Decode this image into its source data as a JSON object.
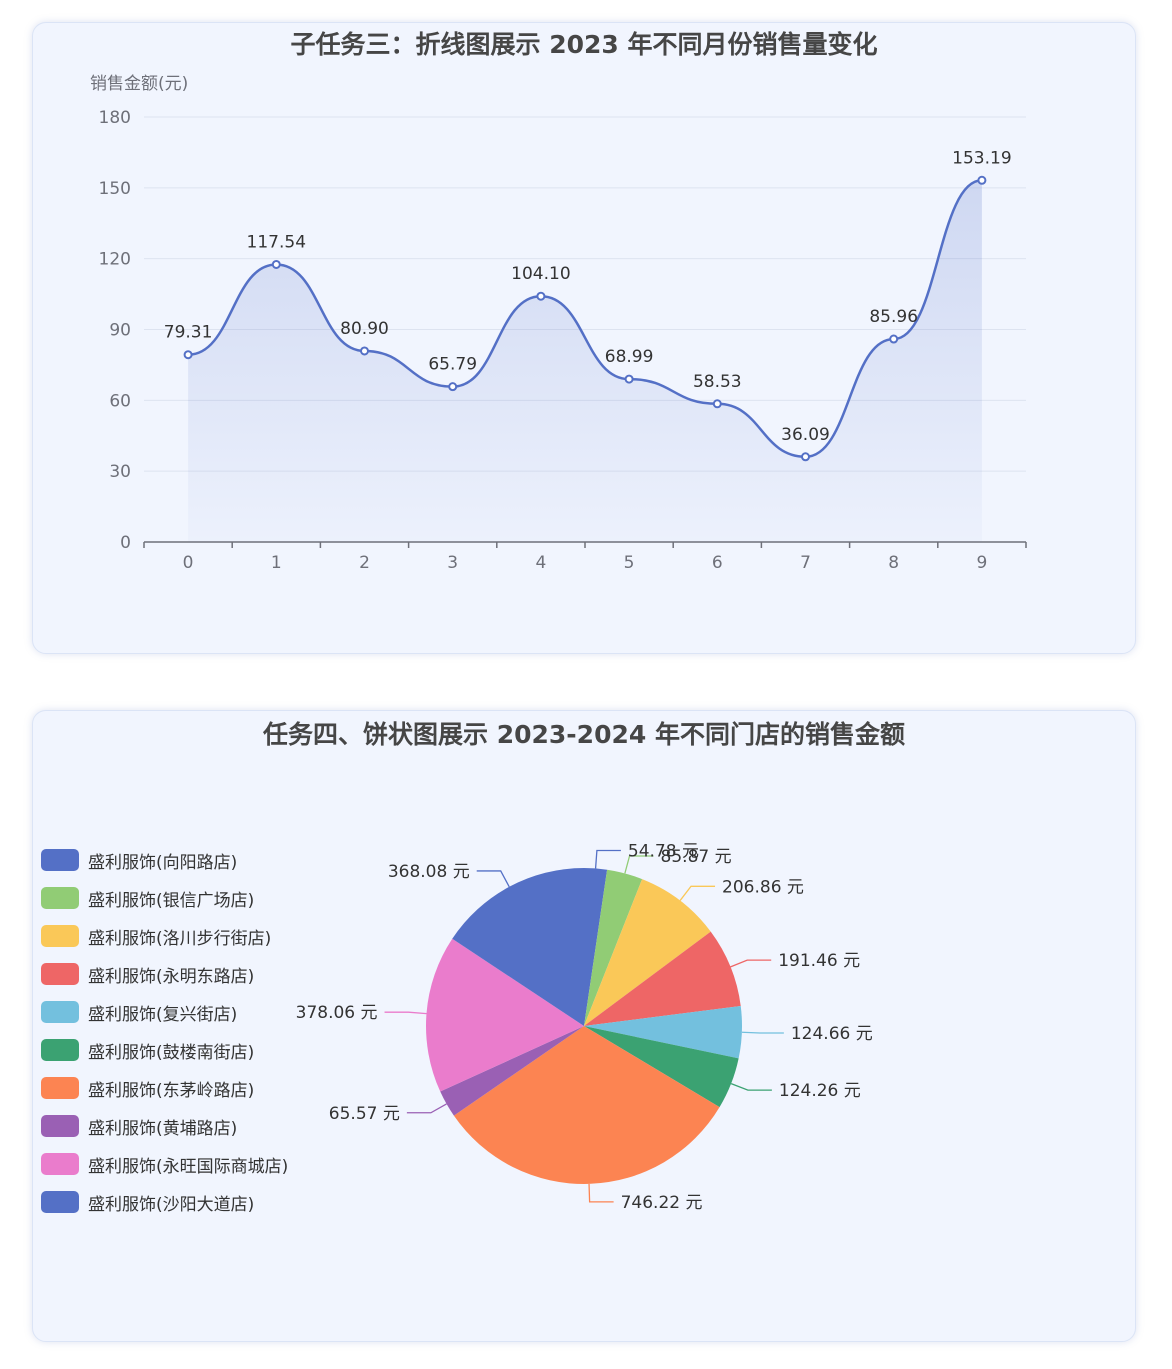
{
  "line_card": {
    "title": "子任务三：折线图展示 2023 年不同月份销售量变化"
  },
  "pie_card": {
    "title": "任务四、饼状图展示 2023-2024 年不同门店的销售金额"
  },
  "chart_data": [
    {
      "type": "line",
      "title": "子任务三：折线图展示 2023 年不同月份销售量变化",
      "ylabel": "销售金额(元)",
      "xlabel": "",
      "x": [
        0,
        1,
        2,
        3,
        4,
        5,
        6,
        7,
        8,
        9
      ],
      "values": [
        79.31,
        117.54,
        80.9,
        65.79,
        104.1,
        68.99,
        58.53,
        36.09,
        85.96,
        153.19
      ],
      "value_labels": [
        "79.31",
        "117.54",
        "80.90",
        "65.79",
        "104.10",
        "68.99",
        "58.53",
        "36.09",
        "85.96",
        "153.19"
      ],
      "ylim": [
        0,
        180
      ],
      "yticks": [
        0,
        30,
        60,
        90,
        120,
        150,
        180
      ],
      "smooth": true,
      "area_fill": true,
      "grid": true,
      "color": "#5470c6"
    },
    {
      "type": "pie",
      "title": "任务四、饼状图展示 2023-2024 年不同门店的销售金额",
      "legend_position": "left",
      "label_suffix": " 元",
      "slices": [
        {
          "name": "盛利服饰(向阳路店)",
          "value": 54.78,
          "label": "54.78 元",
          "color": "#5470c6"
        },
        {
          "name": "盛利服饰(银信广场店)",
          "value": 85.87,
          "label": "85.87 元",
          "color": "#91cc75"
        },
        {
          "name": "盛利服饰(洛川步行街店)",
          "value": 206.86,
          "label": "206.86 元",
          "color": "#fac858"
        },
        {
          "name": "盛利服饰(永明东路店)",
          "value": 191.46,
          "label": "191.46 元",
          "color": "#ee6666"
        },
        {
          "name": "盛利服饰(复兴街店)",
          "value": 124.66,
          "label": "124.66 元",
          "color": "#73c0de"
        },
        {
          "name": "盛利服饰(鼓楼南街店)",
          "value": 124.26,
          "label": "124.26 元",
          "color": "#3ba272"
        },
        {
          "name": "盛利服饰(东茅岭路店)",
          "value": 746.22,
          "label": "746.22 元",
          "color": "#fc8452"
        },
        {
          "name": "盛利服饰(黄埔路店)",
          "value": 65.57,
          "label": "65.57 元",
          "color": "#9a60b4"
        },
        {
          "name": "盛利服饰(永旺国际商城店)",
          "value": 378.06,
          "label": "378.06 元",
          "color": "#ea7ccc"
        },
        {
          "name": "盛利服饰(沙阳大道店)",
          "value": 368.08,
          "label": "368.08 元",
          "color": "#5470c6"
        }
      ]
    }
  ]
}
